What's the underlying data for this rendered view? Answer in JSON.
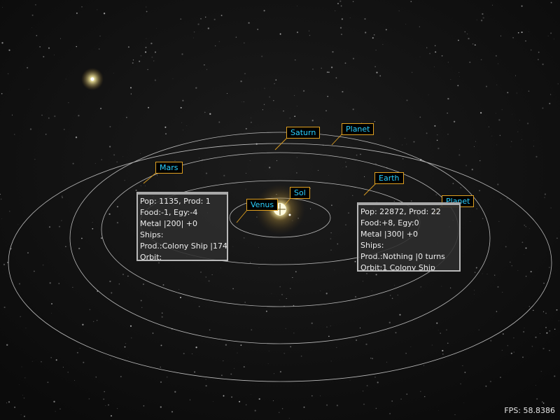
{
  "labels": {
    "saturn": "Saturn",
    "planet_outer": "Planet",
    "mars": "Mars",
    "earth": "Earth",
    "planet_right": "Planet",
    "sol": "Sol",
    "venus": "Venus"
  },
  "mars_panel": {
    "pop": "Pop: 1135, Prod: 1",
    "food": "Food:-1, Egy:-4",
    "metal": "Metal |200| +0",
    "ships": "Ships:",
    "prod": "Prod.:Colony Ship |174",
    "orbit": "Orbit:"
  },
  "earth_panel": {
    "pop": "Pop: 22872, Prod: 22",
    "food": "Food:+8, Egy:0",
    "metal": "Metal |300| +0",
    "ships": "Ships:",
    "prod": "Prod.:Nothing |0 turns",
    "orbit": "Orbit:1 Colony Ship"
  },
  "fps": "FPS: 58.8386",
  "colors": {
    "label_text": "#2ad0ff",
    "label_border": "#e0a020",
    "orbit_line": "#d8d8d8",
    "sun_glow": "#fff6b0"
  }
}
